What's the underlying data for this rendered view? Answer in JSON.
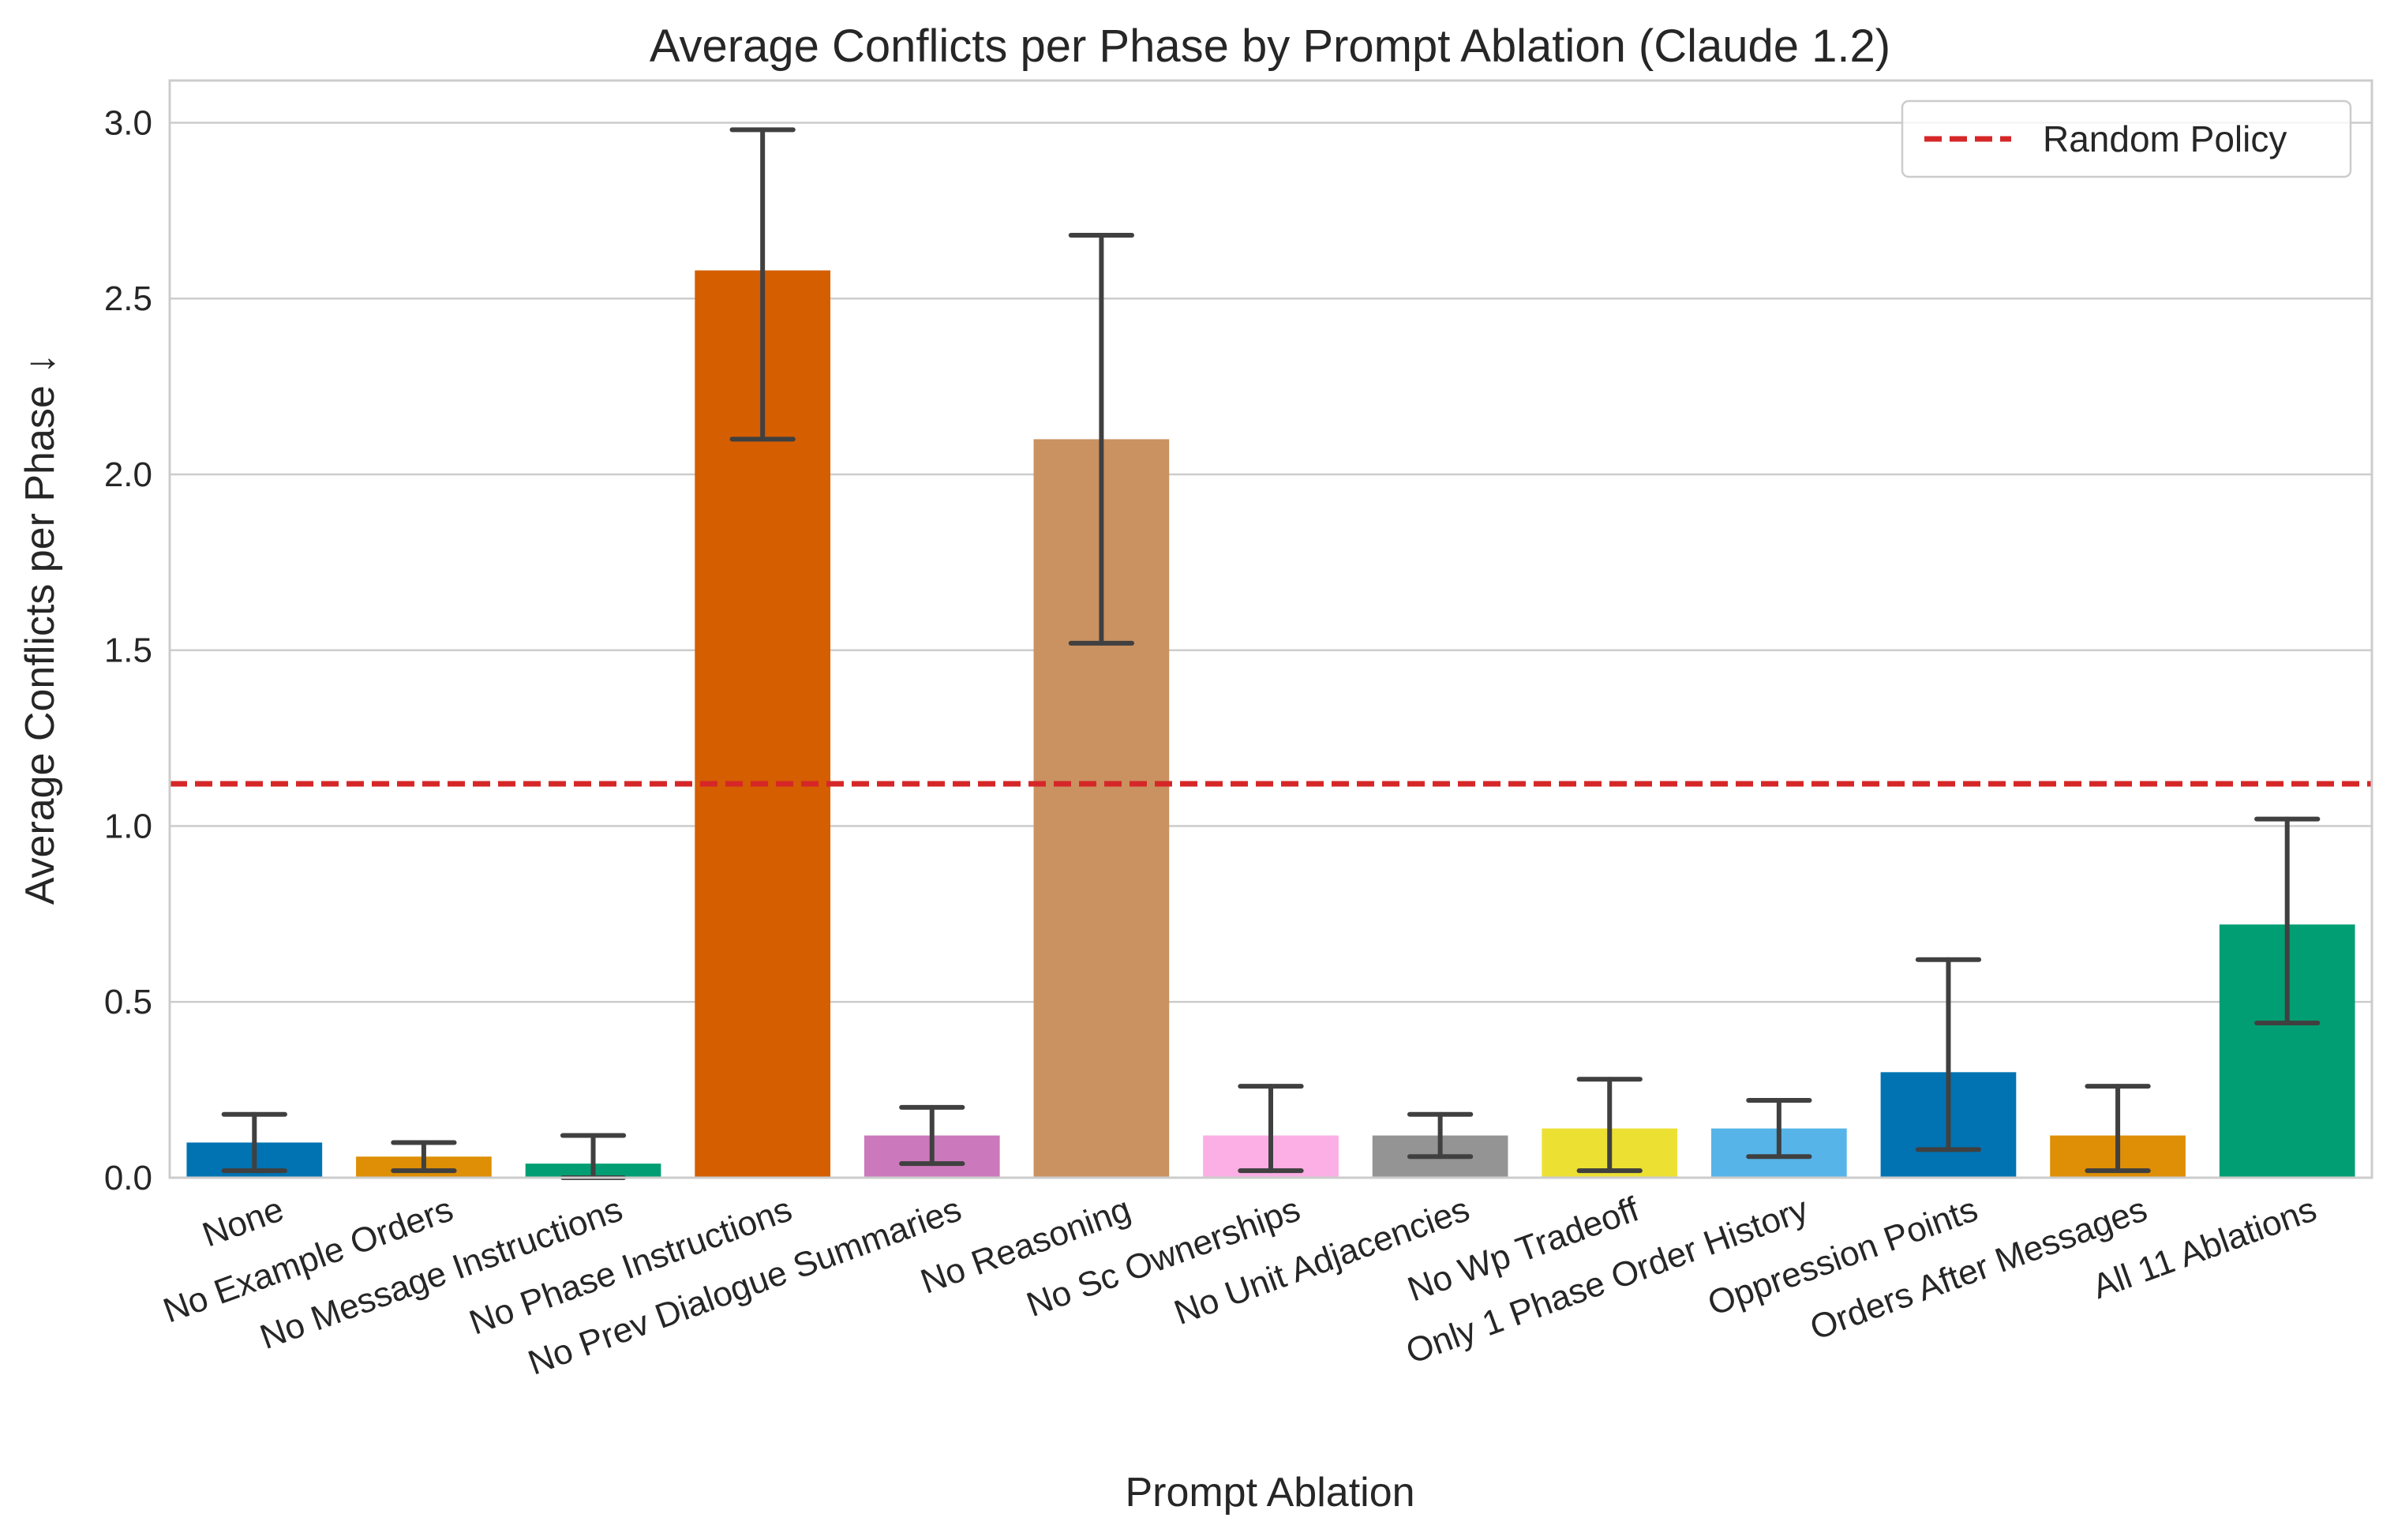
{
  "chart_data": {
    "type": "bar",
    "title": "Average Conflicts per Phase by Prompt Ablation (Claude 1.2)",
    "xlabel": "Prompt Ablation",
    "ylabel": "Average Conflicts per Phase ↓",
    "ylim": [
      0,
      3.12
    ],
    "yticks": [
      "0.0",
      "0.5",
      "1.0",
      "1.5",
      "2.0",
      "2.5",
      "3.0"
    ],
    "grid": "horizontal",
    "legend_position": "top-right",
    "categories": [
      "None",
      "No Example Orders",
      "No Message Instructions",
      "No Phase Instructions",
      "No Prev Dialogue Summaries",
      "No Reasoning",
      "No Sc Ownerships",
      "No Unit Adjacencies",
      "No Wp Tradeoff",
      "Only 1 Phase Order History",
      "Oppression Points",
      "Orders After Messages",
      "All 11 Ablations"
    ],
    "values": [
      0.1,
      0.06,
      0.04,
      2.58,
      0.12,
      2.1,
      0.12,
      0.12,
      0.14,
      0.14,
      0.3,
      0.12,
      0.72
    ],
    "error_low": [
      0.02,
      0.02,
      0.0,
      2.1,
      0.04,
      1.52,
      0.02,
      0.06,
      0.02,
      0.06,
      0.08,
      0.02,
      0.44
    ],
    "error_high": [
      0.18,
      0.1,
      0.12,
      2.98,
      0.2,
      2.68,
      0.26,
      0.18,
      0.28,
      0.22,
      0.62,
      0.26,
      1.02
    ],
    "colors": [
      "#0173b2",
      "#de8f05",
      "#029e73",
      "#d55e00",
      "#cc78bc",
      "#ca9161",
      "#fbafe4",
      "#949494",
      "#ece133",
      "#56b4e9",
      "#0173b2",
      "#de8f05",
      "#029e73"
    ],
    "reference_line": {
      "name": "Random Policy",
      "value": 1.12,
      "color": "#d62728",
      "style": "dashed"
    }
  }
}
